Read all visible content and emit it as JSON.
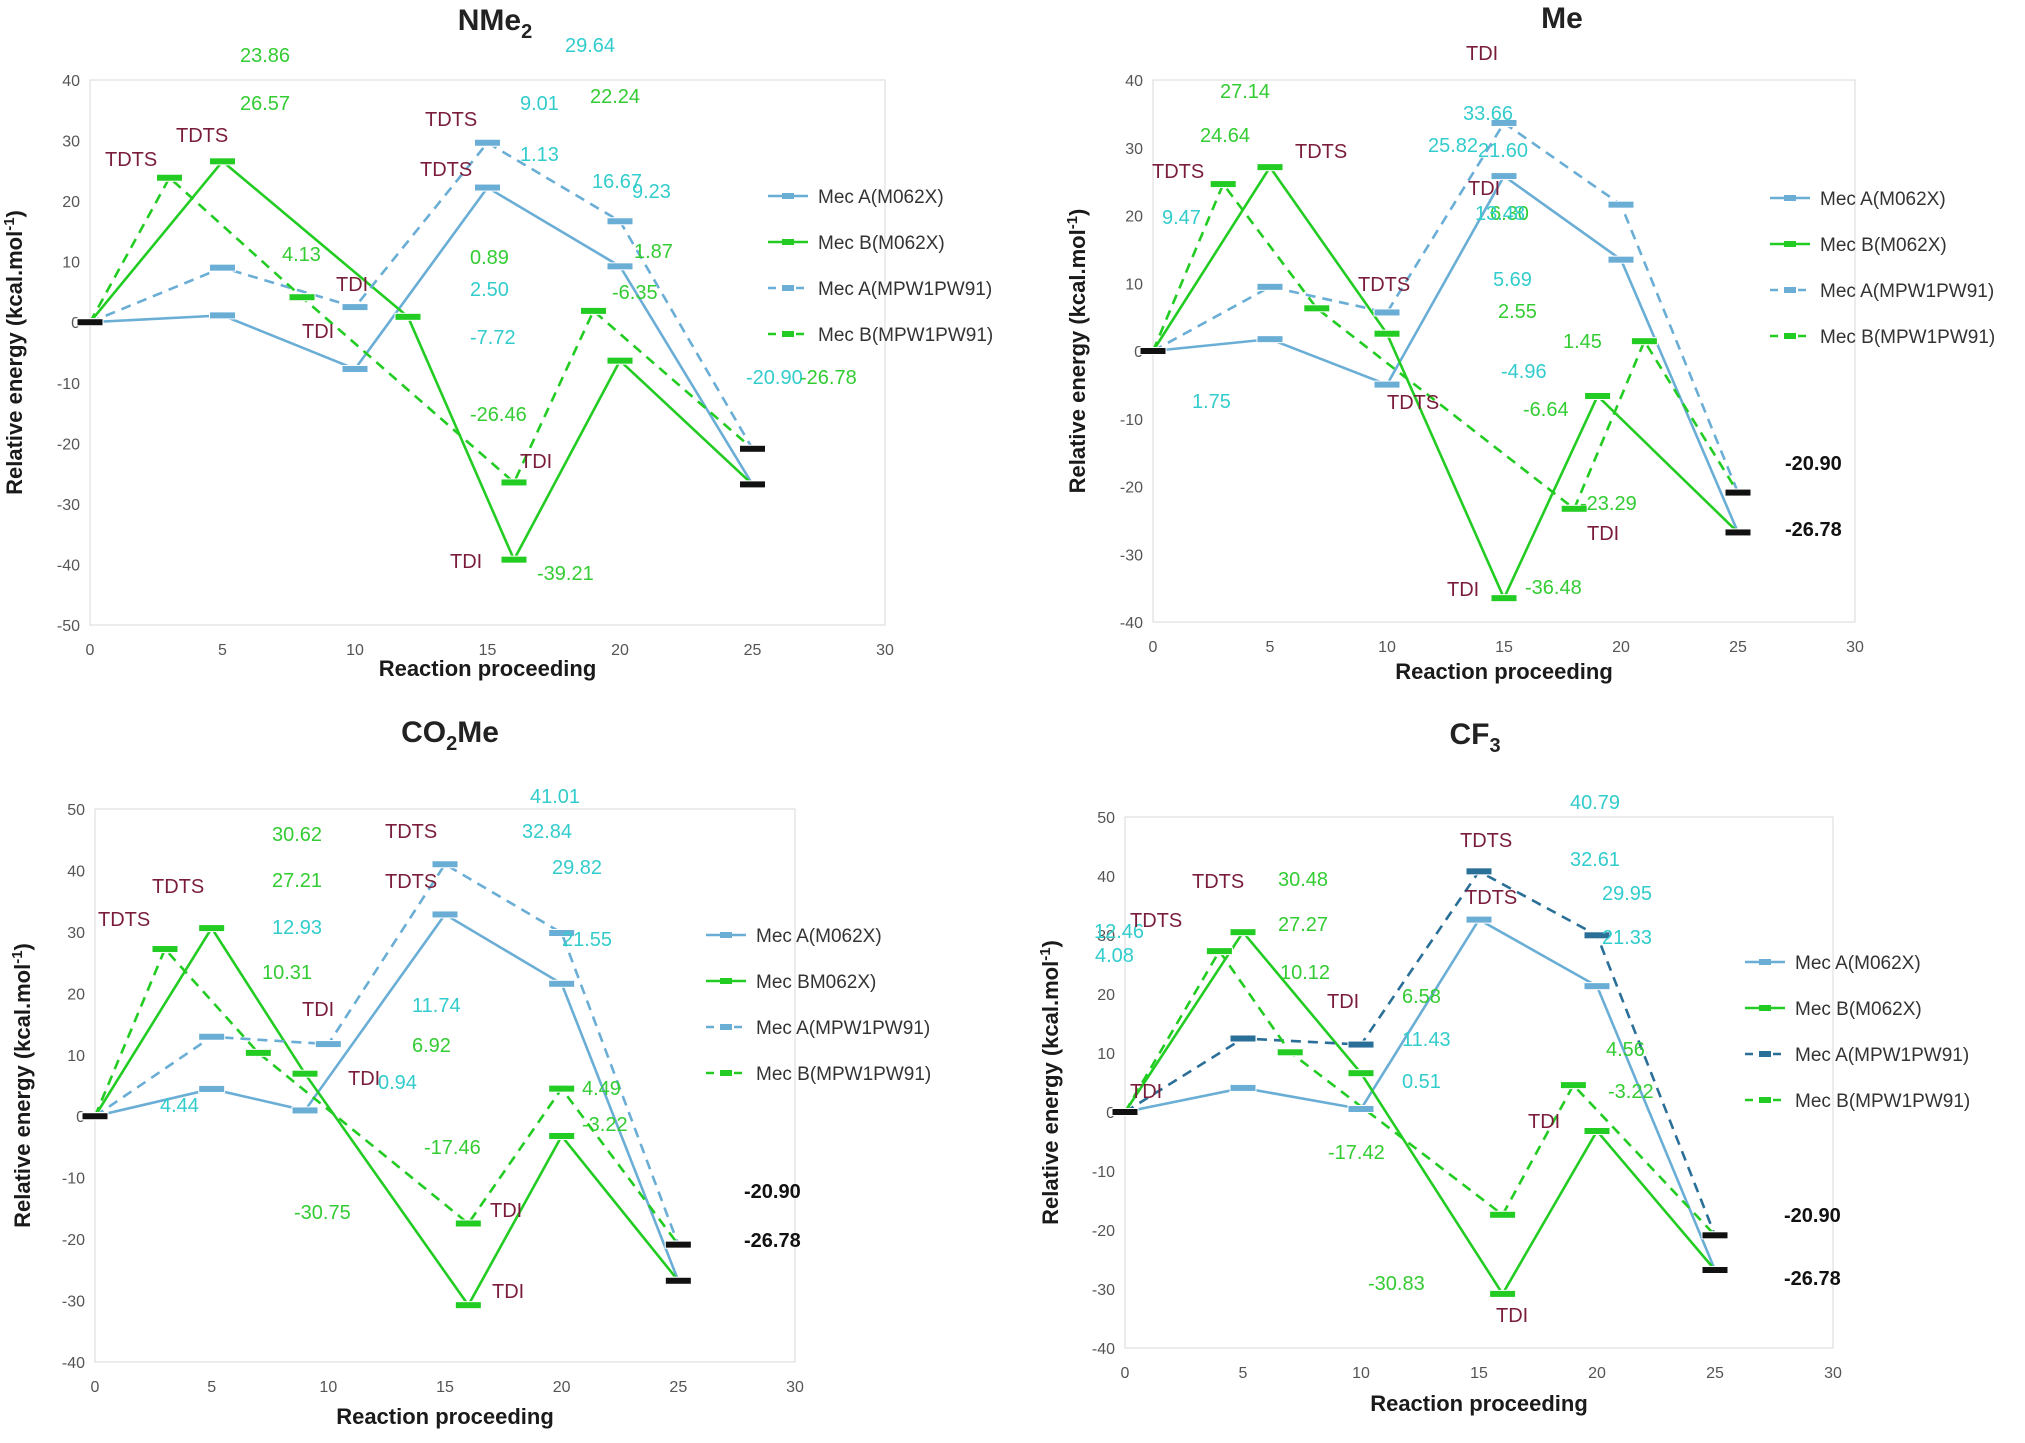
{
  "colors": {
    "mecA": "#6aaed6",
    "mecB": "#22cc22",
    "mecA_dark": "#2a6f97",
    "endpoint": "#111111",
    "label_cyan": "#33cccc",
    "label_green": "#33cc33",
    "annotation": "#7a1d3a",
    "leader": "#b8b8b8"
  },
  "chart_data": [
    {
      "type": "line",
      "title": {
        "main": "NMe",
        "sub": "2",
        "tail": ""
      },
      "xlabel": "Reaction proceeding",
      "ylabel": "Relative energy (kcal.mol-1)",
      "xlim": [
        0,
        30
      ],
      "ylim": [
        -50,
        40
      ],
      "x_ticks": [
        "0",
        "5",
        "10",
        "15",
        "20",
        "25",
        "30"
      ],
      "y_ticks": [
        "40",
        "30",
        "20",
        "10",
        "0",
        "-10",
        "-20",
        "-30",
        "-40",
        "-50"
      ],
      "series": [
        {
          "name": "Mec A(M062X)",
          "dashed": false,
          "color_key": "mecA",
          "points": [
            [
              0,
              0
            ],
            [
              5,
              1.13
            ],
            [
              10,
              -7.72
            ],
            [
              15,
              22.24
            ],
            [
              20,
              9.23
            ],
            [
              25,
              -26.78
            ]
          ]
        },
        {
          "name": "Mec B(M062X)",
          "dashed": false,
          "color_key": "mecB",
          "points": [
            [
              0,
              0
            ],
            [
              5,
              26.57
            ],
            [
              12,
              0.89
            ],
            [
              16,
              -39.21
            ],
            [
              20,
              -6.35
            ],
            [
              25,
              -26.78
            ]
          ]
        },
        {
          "name": "Mec A(MPW1PW91)",
          "dashed": true,
          "color_key": "mecA",
          "points": [
            [
              0,
              0
            ],
            [
              5,
              9.01
            ],
            [
              10,
              2.5
            ],
            [
              15,
              29.64
            ],
            [
              20,
              16.67
            ],
            [
              25,
              -20.9
            ]
          ]
        },
        {
          "name": "Mec B(MPW1PW91)",
          "dashed": true,
          "color_key": "mecB",
          "points": [
            [
              0,
              0
            ],
            [
              3,
              23.86
            ],
            [
              8,
              4.13
            ],
            [
              16,
              -26.46
            ],
            [
              19,
              1.87
            ],
            [
              25,
              -20.9
            ]
          ]
        }
      ],
      "labels": [
        {
          "text": "23.86",
          "color_key": "label_green"
        },
        {
          "text": "26.57",
          "color_key": "label_green"
        },
        {
          "text": "9.01",
          "color_key": "label_cyan"
        },
        {
          "text": "1.13",
          "color_key": "label_cyan"
        },
        {
          "text": "4.13",
          "color_key": "label_green"
        },
        {
          "text": "0.89",
          "color_key": "label_green"
        },
        {
          "text": "2.50",
          "color_key": "label_cyan"
        },
        {
          "text": "-7.72",
          "color_key": "label_cyan"
        },
        {
          "text": "29.64",
          "color_key": "label_cyan"
        },
        {
          "text": "22.24",
          "color_key": "label_green"
        },
        {
          "text": "16.67",
          "color_key": "label_cyan"
        },
        {
          "text": "9.23",
          "color_key": "label_cyan"
        },
        {
          "text": "1.87",
          "color_key": "label_green"
        },
        {
          "text": "-6.35",
          "color_key": "label_green"
        },
        {
          "text": "-20.90",
          "color_key": "label_cyan"
        },
        {
          "text": "-26.78",
          "color_key": "label_green"
        },
        {
          "text": "-26.46",
          "color_key": "label_green"
        },
        {
          "text": "-39.21",
          "color_key": "label_green"
        }
      ],
      "annotations": [
        {
          "text": "TDTS"
        },
        {
          "text": "TDTS"
        },
        {
          "text": "TDI"
        },
        {
          "text": "TDI"
        },
        {
          "text": "TDTS"
        },
        {
          "text": "TDTS"
        },
        {
          "text": "TDI"
        },
        {
          "text": "TDI"
        }
      ],
      "legend": {
        "position": "right",
        "entries": [
          "Mec A(M062X)",
          "Mec B(M062X)",
          "Mec A(MPW1PW91)",
          "Mec B(MPW1PW91)"
        ]
      }
    },
    {
      "type": "line",
      "title": {
        "main": "Me",
        "sub": "",
        "tail": ""
      },
      "xlabel": "Reaction proceeding",
      "ylabel": "Relative energy (kcal.mol-1)",
      "xlim": [
        0,
        30
      ],
      "ylim": [
        -40,
        40
      ],
      "x_ticks": [
        "0",
        "5",
        "10",
        "15",
        "20",
        "25",
        "30"
      ],
      "y_ticks": [
        "40",
        "30",
        "20",
        "10",
        "0",
        "-10",
        "-20",
        "-30",
        "-40"
      ],
      "series": [
        {
          "name": "Mec A(M062X)",
          "dashed": false,
          "color_key": "mecA",
          "points": [
            [
              0,
              0
            ],
            [
              5,
              1.75
            ],
            [
              10,
              -4.96
            ],
            [
              15,
              25.82
            ],
            [
              20,
              13.48
            ],
            [
              25,
              -26.78
            ]
          ]
        },
        {
          "name": "Mec B(M062X)",
          "dashed": false,
          "color_key": "mecB",
          "points": [
            [
              0,
              0
            ],
            [
              5,
              27.14
            ],
            [
              10,
              2.55
            ],
            [
              15,
              -36.48
            ],
            [
              19,
              -6.64
            ],
            [
              25,
              -26.78
            ]
          ]
        },
        {
          "name": "Mec A(MPW1PW91)",
          "dashed": true,
          "color_key": "mecA",
          "points": [
            [
              0,
              0
            ],
            [
              5,
              9.47
            ],
            [
              10,
              5.69
            ],
            [
              15,
              33.66
            ],
            [
              20,
              21.6
            ],
            [
              25,
              -20.9
            ]
          ]
        },
        {
          "name": "Mec B(MPW1PW91)",
          "dashed": true,
          "color_key": "mecB",
          "points": [
            [
              0,
              0
            ],
            [
              3,
              24.64
            ],
            [
              7,
              6.3
            ],
            [
              18,
              -23.29
            ],
            [
              21,
              1.45
            ],
            [
              25,
              -20.9
            ]
          ]
        }
      ],
      "labels": [
        {
          "text": "27.14",
          "color_key": "label_green"
        },
        {
          "text": "24.64",
          "color_key": "label_green"
        },
        {
          "text": "9.47",
          "color_key": "label_cyan"
        },
        {
          "text": "1.75",
          "color_key": "label_cyan"
        },
        {
          "text": "33.66",
          "color_key": "label_cyan"
        },
        {
          "text": "25.82",
          "color_key": "label_cyan"
        },
        {
          "text": "6.30",
          "color_key": "label_green"
        },
        {
          "text": "5.69",
          "color_key": "label_cyan"
        },
        {
          "text": "2.55",
          "color_key": "label_green"
        },
        {
          "text": "-4.96",
          "color_key": "label_cyan"
        },
        {
          "text": "21.60",
          "color_key": "label_cyan"
        },
        {
          "text": "13.48",
          "color_key": "label_cyan"
        },
        {
          "text": "1.45",
          "color_key": "label_green"
        },
        {
          "text": "-6.64",
          "color_key": "label_green"
        },
        {
          "text": "-23.29",
          "color_key": "label_green"
        },
        {
          "text": "-36.48",
          "color_key": "label_green"
        },
        {
          "text": "-20.90",
          "color_key": "endpoint"
        },
        {
          "text": "-26.78",
          "color_key": "endpoint"
        }
      ],
      "annotations": [
        {
          "text": "TDTS"
        },
        {
          "text": "TDTS"
        },
        {
          "text": "TDTS"
        },
        {
          "text": "TDTS"
        },
        {
          "text": "TDI"
        },
        {
          "text": "TDI"
        },
        {
          "text": "TDI"
        },
        {
          "text": "TDI"
        }
      ],
      "legend": {
        "position": "right",
        "entries": [
          "Mec A(M062X)",
          "Mec B(M062X)",
          "Mec A(MPW1PW91)",
          "Mec B(MPW1PW91)"
        ]
      }
    },
    {
      "type": "line",
      "title": {
        "main": "CO",
        "sub": "2",
        "tail": "Me"
      },
      "xlabel": "Reaction proceeding",
      "ylabel": "Relative energy (kcal.mol-1)",
      "xlim": [
        0,
        30
      ],
      "ylim": [
        -40,
        50
      ],
      "x_ticks": [
        "0",
        "5",
        "10",
        "15",
        "20",
        "25",
        "30"
      ],
      "y_ticks": [
        "50",
        "40",
        "30",
        "20",
        "10",
        "0",
        "-10",
        "-20",
        "-30",
        "-40"
      ],
      "series": [
        {
          "name": "Mec A(M062X)",
          "dashed": false,
          "color_key": "mecA",
          "points": [
            [
              0,
              0
            ],
            [
              5,
              4.44
            ],
            [
              9,
              0.94
            ],
            [
              15,
              32.84
            ],
            [
              20,
              21.55
            ],
            [
              25,
              -26.78
            ]
          ]
        },
        {
          "name": "Mec BM062X)",
          "dashed": false,
          "color_key": "mecB",
          "points": [
            [
              0,
              0
            ],
            [
              5,
              30.62
            ],
            [
              9,
              6.92
            ],
            [
              16,
              -30.75
            ],
            [
              20,
              -3.22
            ],
            [
              25,
              -26.78
            ]
          ]
        },
        {
          "name": "Mec A(MPW1PW91)",
          "dashed": true,
          "color_key": "mecA",
          "points": [
            [
              0,
              0
            ],
            [
              5,
              12.93
            ],
            [
              10,
              11.74
            ],
            [
              15,
              41.01
            ],
            [
              20,
              29.82
            ],
            [
              25,
              -20.9
            ]
          ]
        },
        {
          "name": "Mec B(MPW1PW91)",
          "dashed": true,
          "color_key": "mecB",
          "points": [
            [
              0,
              0
            ],
            [
              3,
              27.21
            ],
            [
              7,
              10.31
            ],
            [
              16,
              -17.46
            ],
            [
              20,
              4.49
            ],
            [
              25,
              -20.9
            ]
          ]
        }
      ],
      "labels": [
        {
          "text": "30.62",
          "color_key": "label_green"
        },
        {
          "text": "27.21",
          "color_key": "label_green"
        },
        {
          "text": "12.93",
          "color_key": "label_cyan"
        },
        {
          "text": "10.31",
          "color_key": "label_green"
        },
        {
          "text": "4.44",
          "color_key": "label_cyan"
        },
        {
          "text": "41.01",
          "color_key": "label_cyan"
        },
        {
          "text": "32.84",
          "color_key": "label_cyan"
        },
        {
          "text": "29.82",
          "color_key": "label_cyan"
        },
        {
          "text": "21.55",
          "color_key": "label_cyan"
        },
        {
          "text": "11.74",
          "color_key": "label_cyan"
        },
        {
          "text": "6.92",
          "color_key": "label_green"
        },
        {
          "text": "0.94",
          "color_key": "label_cyan"
        },
        {
          "text": "4.49",
          "color_key": "label_green"
        },
        {
          "text": "-3.22",
          "color_key": "label_green"
        },
        {
          "text": "-17.46",
          "color_key": "label_green"
        },
        {
          "text": "-30.75",
          "color_key": "label_green"
        },
        {
          "text": "-20.90",
          "color_key": "endpoint"
        },
        {
          "text": "-26.78",
          "color_key": "endpoint"
        }
      ],
      "annotations": [
        {
          "text": "TDTS"
        },
        {
          "text": "TDTS"
        },
        {
          "text": "TDI"
        },
        {
          "text": "TDI"
        },
        {
          "text": "TDTS"
        },
        {
          "text": "TDTS"
        },
        {
          "text": "TDI"
        },
        {
          "text": "TDI"
        }
      ],
      "legend": {
        "position": "right",
        "entries": [
          "Mec A(M062X)",
          "Mec BM062X)",
          "Mec A(MPW1PW91)",
          "Mec B(MPW1PW91)"
        ]
      }
    },
    {
      "type": "line",
      "title": {
        "main": "CF",
        "sub": "3",
        "tail": ""
      },
      "xlabel": "Reaction proceeding",
      "ylabel": "Relative energy (kcal.mol-1)",
      "xlim": [
        0,
        30
      ],
      "ylim": [
        -40,
        50
      ],
      "x_ticks": [
        "0",
        "5",
        "10",
        "15",
        "20",
        "25",
        "30"
      ],
      "y_ticks": [
        "50",
        "40",
        "30",
        "20",
        "10",
        "0",
        "-10",
        "-20",
        "-30",
        "-40"
      ],
      "series": [
        {
          "name": "Mec A(M062X)",
          "dashed": false,
          "color_key": "mecA",
          "points": [
            [
              0,
              0
            ],
            [
              5,
              4.08
            ],
            [
              10,
              0.51
            ],
            [
              15,
              32.61
            ],
            [
              20,
              21.33
            ],
            [
              25,
              -26.78
            ]
          ]
        },
        {
          "name": "Mec B(M062X)",
          "dashed": false,
          "color_key": "mecB",
          "points": [
            [
              0,
              0
            ],
            [
              5,
              30.48
            ],
            [
              10,
              6.58
            ],
            [
              16,
              -30.83
            ],
            [
              20,
              -3.22
            ],
            [
              25,
              -26.78
            ]
          ]
        },
        {
          "name": "Mec A(MPW1PW91)",
          "dashed": true,
          "color_key": "mecA_dark",
          "points": [
            [
              0,
              0
            ],
            [
              5,
              12.46
            ],
            [
              10,
              11.43
            ],
            [
              15,
              40.79
            ],
            [
              20,
              29.95
            ],
            [
              25,
              -20.9
            ]
          ]
        },
        {
          "name": "Mec B(MPW1PW91)",
          "dashed": true,
          "color_key": "mecB",
          "points": [
            [
              0,
              0
            ],
            [
              4,
              27.27
            ],
            [
              7,
              10.12
            ],
            [
              16,
              -17.42
            ],
            [
              19,
              4.56
            ],
            [
              25,
              -20.9
            ]
          ]
        }
      ],
      "labels": [
        {
          "text": "30.48",
          "color_key": "label_green"
        },
        {
          "text": "27.27",
          "color_key": "label_green"
        },
        {
          "text": "12.46",
          "color_key": "label_cyan"
        },
        {
          "text": "10.12",
          "color_key": "label_green"
        },
        {
          "text": "4.08",
          "color_key": "label_cyan"
        },
        {
          "text": "40.79",
          "color_key": "label_cyan"
        },
        {
          "text": "32.61",
          "color_key": "label_cyan"
        },
        {
          "text": "29.95",
          "color_key": "label_cyan"
        },
        {
          "text": "21.33",
          "color_key": "label_cyan"
        },
        {
          "text": "6.58",
          "color_key": "label_green"
        },
        {
          "text": "11.43",
          "color_key": "label_cyan"
        },
        {
          "text": "0.51",
          "color_key": "label_cyan"
        },
        {
          "text": "4.56",
          "color_key": "label_green"
        },
        {
          "text": "-3.22",
          "color_key": "label_green"
        },
        {
          "text": "-17.42",
          "color_key": "label_green"
        },
        {
          "text": "-30.83",
          "color_key": "label_green"
        },
        {
          "text": "-20.90",
          "color_key": "endpoint"
        },
        {
          "text": "-26.78",
          "color_key": "endpoint"
        }
      ],
      "annotations": [
        {
          "text": "TDTS"
        },
        {
          "text": "TDTS"
        },
        {
          "text": "TDI"
        },
        {
          "text": "TDI"
        },
        {
          "text": "TDTS"
        },
        {
          "text": "TDTS"
        },
        {
          "text": "TDI"
        },
        {
          "text": "TDI"
        }
      ],
      "legend": {
        "position": "right",
        "entries": [
          "Mec A(M062X)",
          "Mec B(M062X)",
          "Mec A(MPW1PW91)",
          "Mec B(MPW1PW91)"
        ]
      }
    }
  ]
}
